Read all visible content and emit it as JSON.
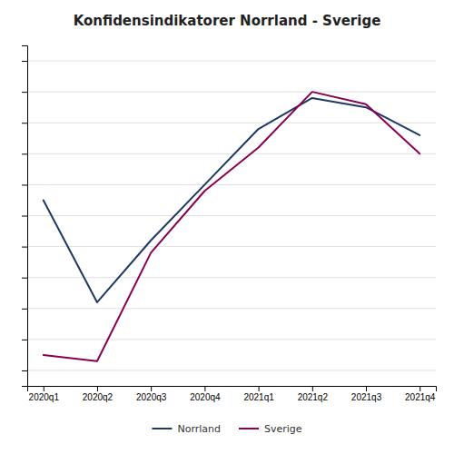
{
  "chart_data": {
    "type": "line",
    "title": "Konfidensindikatorer Norrland - Sverige",
    "categories": [
      "2020q1",
      "2020q2",
      "2020q3",
      "2020q4",
      "2021q1",
      "2021q2",
      "2021q3",
      "2021q4"
    ],
    "series": [
      {
        "name": "Norrland",
        "color": "#1f3864",
        "values": [
          55,
          22,
          42,
          60,
          78,
          88,
          85,
          76
        ]
      },
      {
        "name": "Sverige",
        "color": "#8B0050",
        "values": [
          5,
          3,
          38,
          58,
          72,
          90,
          86,
          70
        ]
      }
    ],
    "ylim": [
      -5,
      105
    ],
    "yticks": [
      0,
      10,
      20,
      30,
      40,
      50,
      60,
      70,
      80,
      90,
      100
    ],
    "grid": true,
    "legend": "bottom",
    "tick_labels": "x"
  }
}
